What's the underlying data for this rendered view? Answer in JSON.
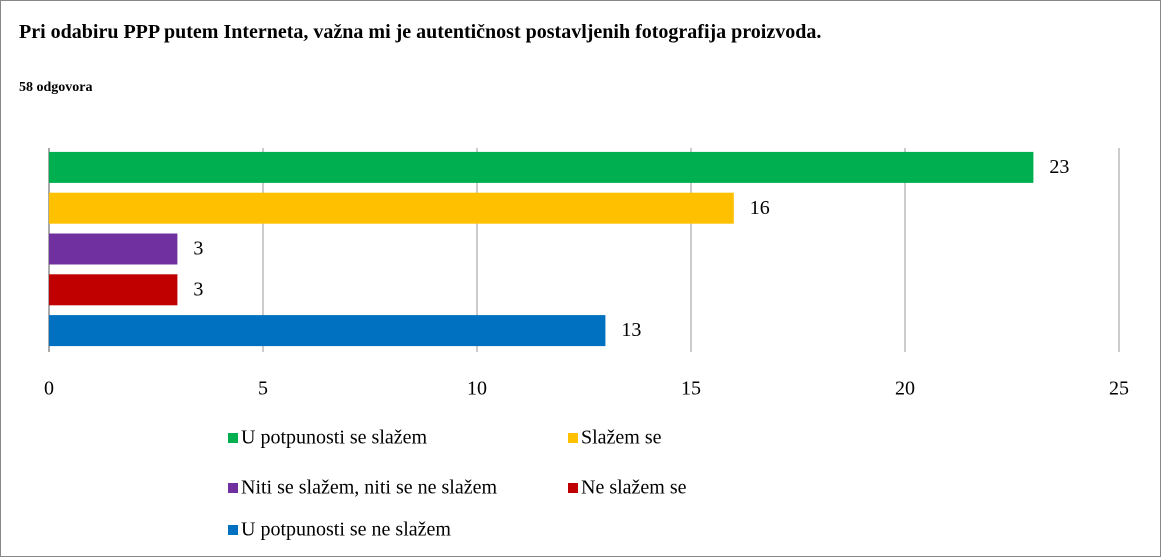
{
  "chart_data": {
    "type": "bar",
    "orientation": "horizontal",
    "title": "Pri odabiru PPP putem Interneta, važna mi je autentičnost postavljenih fotografija proizvoda.",
    "subtitle": "58 odgovora",
    "series": [
      {
        "name": "U potpunosti se slažem",
        "color": "#00b050",
        "values": [
          23
        ]
      },
      {
        "name": "Slažem se",
        "color": "#ffc000",
        "values": [
          16
        ]
      },
      {
        "name": "Niti se slažem, niti se ne slažem",
        "color": "#7030a0",
        "values": [
          3
        ]
      },
      {
        "name": "Ne slažem se",
        "color": "#c00000",
        "values": [
          3
        ]
      },
      {
        "name": "U potpunosti se ne slažem",
        "color": "#0070c0",
        "values": [
          13
        ]
      }
    ],
    "xlim": [
      0,
      25
    ],
    "xticks": [
      0,
      5,
      10,
      15,
      20,
      25
    ],
    "grid": true
  }
}
